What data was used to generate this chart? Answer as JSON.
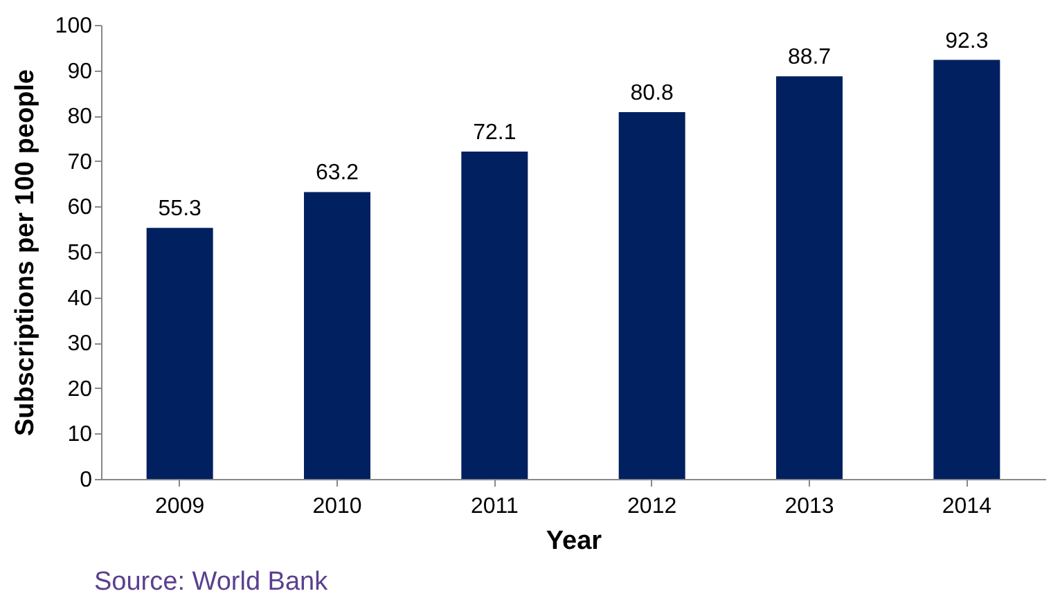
{
  "chart_data": {
    "type": "bar",
    "xlabel": "Year",
    "ylabel": "Subscriptions per 100 people",
    "categories": [
      "2009",
      "2010",
      "2011",
      "2012",
      "2013",
      "2014"
    ],
    "values": [
      55.3,
      63.2,
      72.1,
      80.8,
      88.7,
      92.3
    ],
    "color": "#002060",
    "ylim": [
      0,
      100
    ],
    "yticks": [
      0,
      10,
      20,
      30,
      40,
      50,
      60,
      70,
      80,
      90,
      100
    ],
    "grid": false,
    "data_labels": true,
    "annotations": [
      "Source: World Bank"
    ]
  }
}
